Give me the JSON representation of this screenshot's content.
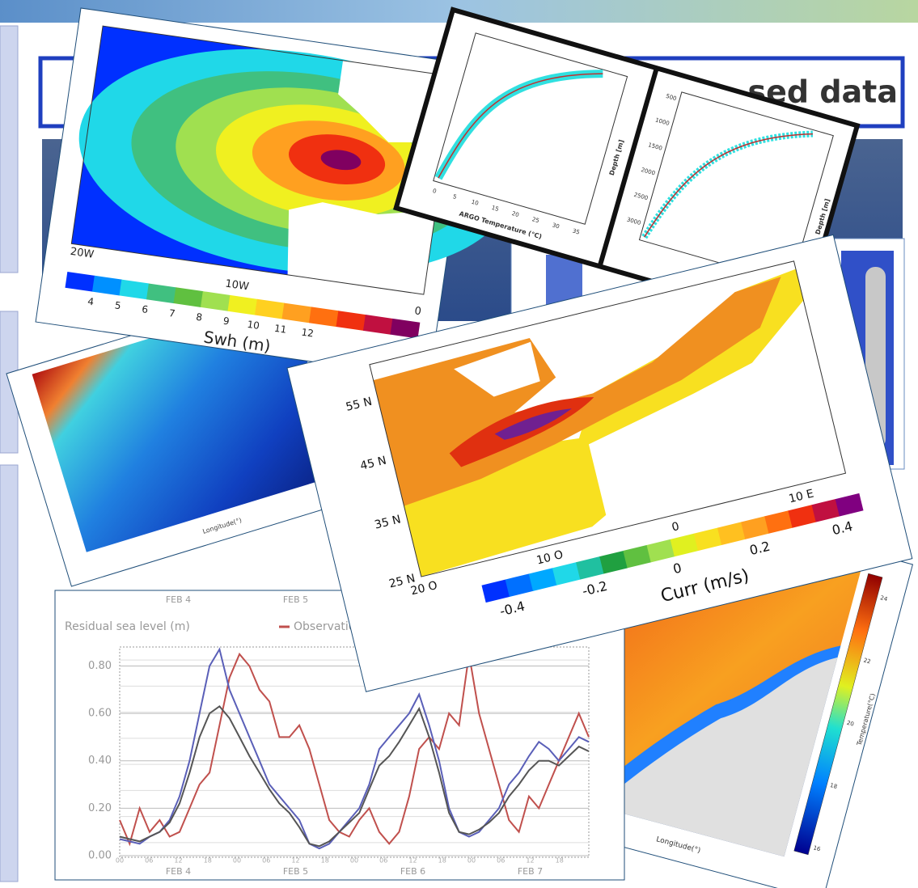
{
  "banner": {
    "title": "sed data"
  },
  "swh_map": {
    "x_labels": [
      "20W",
      "10W",
      "0"
    ],
    "colorbar_ticks": [
      4,
      5,
      6,
      7,
      8,
      9,
      10,
      11,
      12
    ],
    "colorbar_label": "Swh (m)"
  },
  "argo_profiles": {
    "x_label": "ARGO Temperature (°C)",
    "y_label": "Depth [m]",
    "x_ticks": [
      0,
      5,
      10,
      15,
      20,
      25,
      30,
      35
    ],
    "depth_ticks": [
      500,
      1000,
      1500,
      2000,
      2500,
      3000
    ]
  },
  "section_map": {
    "x_label": "Longitude(°)"
  },
  "current_map": {
    "lat_labels": [
      "55 N",
      "45 N",
      "35 N",
      "25 N"
    ],
    "lon_labels": [
      "20 O",
      "10 O",
      "0",
      "10 E"
    ],
    "colorbar_ticks": [
      -0.4,
      -0.2,
      0,
      0.2,
      0.4
    ],
    "colorbar_label": "Curr (m/s)"
  },
  "sea_level": {
    "title": "Residual sea level (m)",
    "ylim": [
      0,
      0.88
    ],
    "yticks": [
      {
        "value": 0,
        "label": "0.00"
      },
      {
        "value": 0.2,
        "label": "0.20"
      },
      {
        "value": 0.4,
        "label": "0.40"
      },
      {
        "value": 0.6,
        "label": "0.60"
      },
      {
        "value": 0.8,
        "label": "0.80"
      }
    ],
    "days": [
      "FEB 4",
      "FEB 5",
      "FEB 6",
      "FEB 7"
    ],
    "hours": [
      "00",
      "06",
      "12",
      "18"
    ],
    "series": [
      {
        "name": "Observation",
        "color": "#c0504d",
        "values": [
          0.15,
          0.05,
          0.2,
          0.1,
          0.15,
          0.08,
          0.1,
          0.2,
          0.3,
          0.35,
          0.55,
          0.75,
          0.85,
          0.8,
          0.7,
          0.65,
          0.5,
          0.5,
          0.55,
          0.45,
          0.3,
          0.15,
          0.1,
          0.08,
          0.15,
          0.2,
          0.1,
          0.05,
          0.1,
          0.25,
          0.45,
          0.5,
          0.45,
          0.6,
          0.55,
          0.85,
          0.6,
          0.45,
          0.3,
          0.15,
          0.1,
          0.25,
          0.2,
          0.3,
          0.4,
          0.5,
          0.6,
          0.5
        ]
      },
      {
        "color": "#5a5fb8",
        "values": [
          0.07,
          0.06,
          0.05,
          0.08,
          0.1,
          0.15,
          0.25,
          0.4,
          0.6,
          0.8,
          0.87,
          0.7,
          0.6,
          0.5,
          0.4,
          0.3,
          0.25,
          0.2,
          0.15,
          0.05,
          0.03,
          0.05,
          0.1,
          0.15,
          0.2,
          0.3,
          0.45,
          0.5,
          0.55,
          0.6,
          0.68,
          0.55,
          0.4,
          0.2,
          0.1,
          0.08,
          0.1,
          0.15,
          0.2,
          0.3,
          0.35,
          0.42,
          0.48,
          0.45,
          0.4,
          0.45,
          0.5,
          0.48
        ]
      },
      {
        "color": "#555555",
        "values": [
          0.08,
          0.07,
          0.06,
          0.08,
          0.1,
          0.14,
          0.22,
          0.35,
          0.5,
          0.6,
          0.63,
          0.58,
          0.5,
          0.42,
          0.35,
          0.28,
          0.22,
          0.18,
          0.12,
          0.05,
          0.04,
          0.06,
          0.1,
          0.14,
          0.18,
          0.28,
          0.38,
          0.42,
          0.48,
          0.55,
          0.62,
          0.5,
          0.35,
          0.18,
          0.1,
          0.09,
          0.11,
          0.14,
          0.18,
          0.25,
          0.3,
          0.36,
          0.4,
          0.4,
          0.38,
          0.42,
          0.46,
          0.44
        ]
      }
    ]
  },
  "temperature_map": {
    "x_label": "Longitude(°)",
    "colorbar_label": "Temperature(°C)",
    "colorbar_ticks": [
      16,
      18,
      20,
      22,
      24
    ]
  }
}
